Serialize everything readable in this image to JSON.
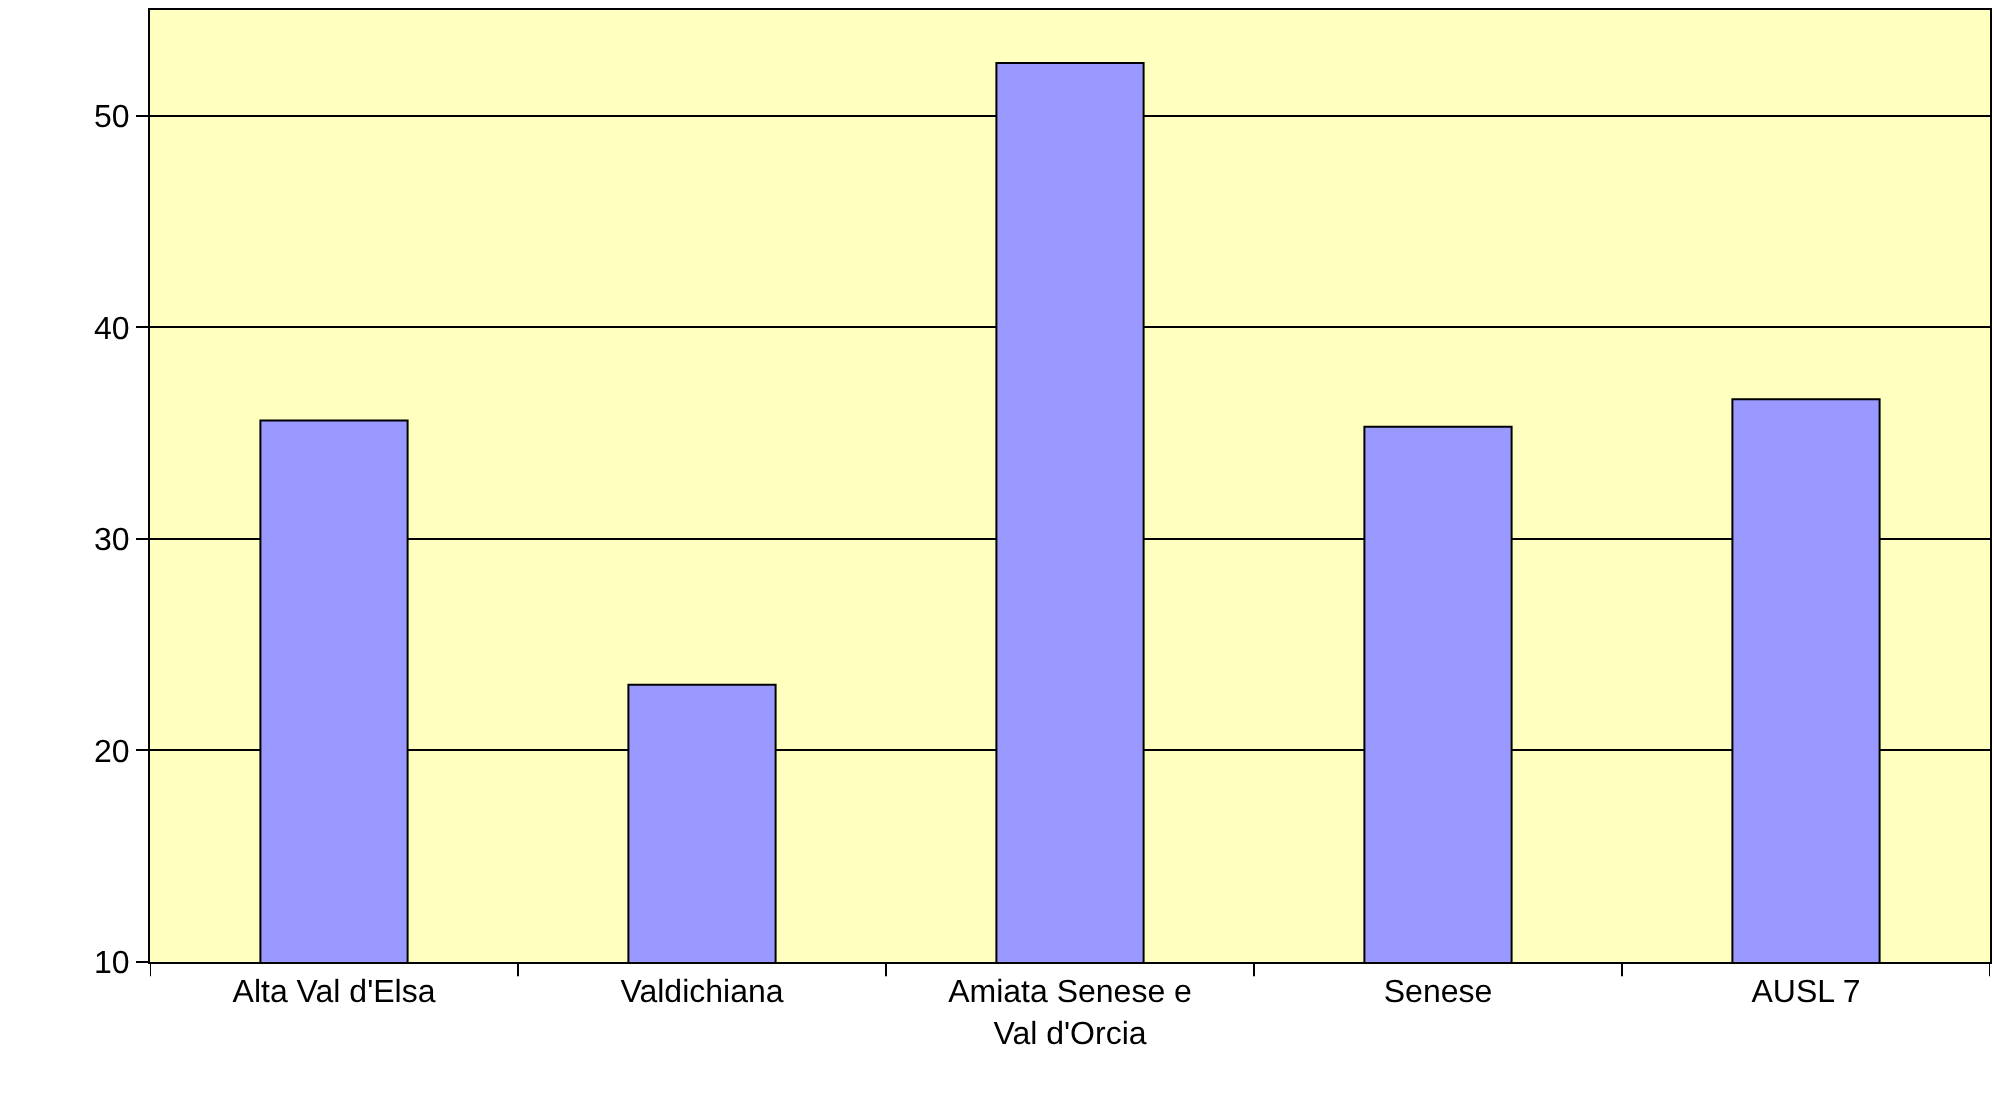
{
  "chart_data": {
    "type": "bar",
    "categories": [
      "Alta Val d'Elsa",
      "Valdichiana",
      "Amiata Senese e Val d'Orcia",
      "Senese",
      "AUSL 7"
    ],
    "values": [
      35.6,
      23.1,
      52.5,
      35.3,
      36.6
    ],
    "color": "#9999ff",
    "ylim": [
      10,
      55
    ],
    "yticks": [
      10,
      20,
      30,
      40,
      50
    ],
    "grid": "y"
  }
}
